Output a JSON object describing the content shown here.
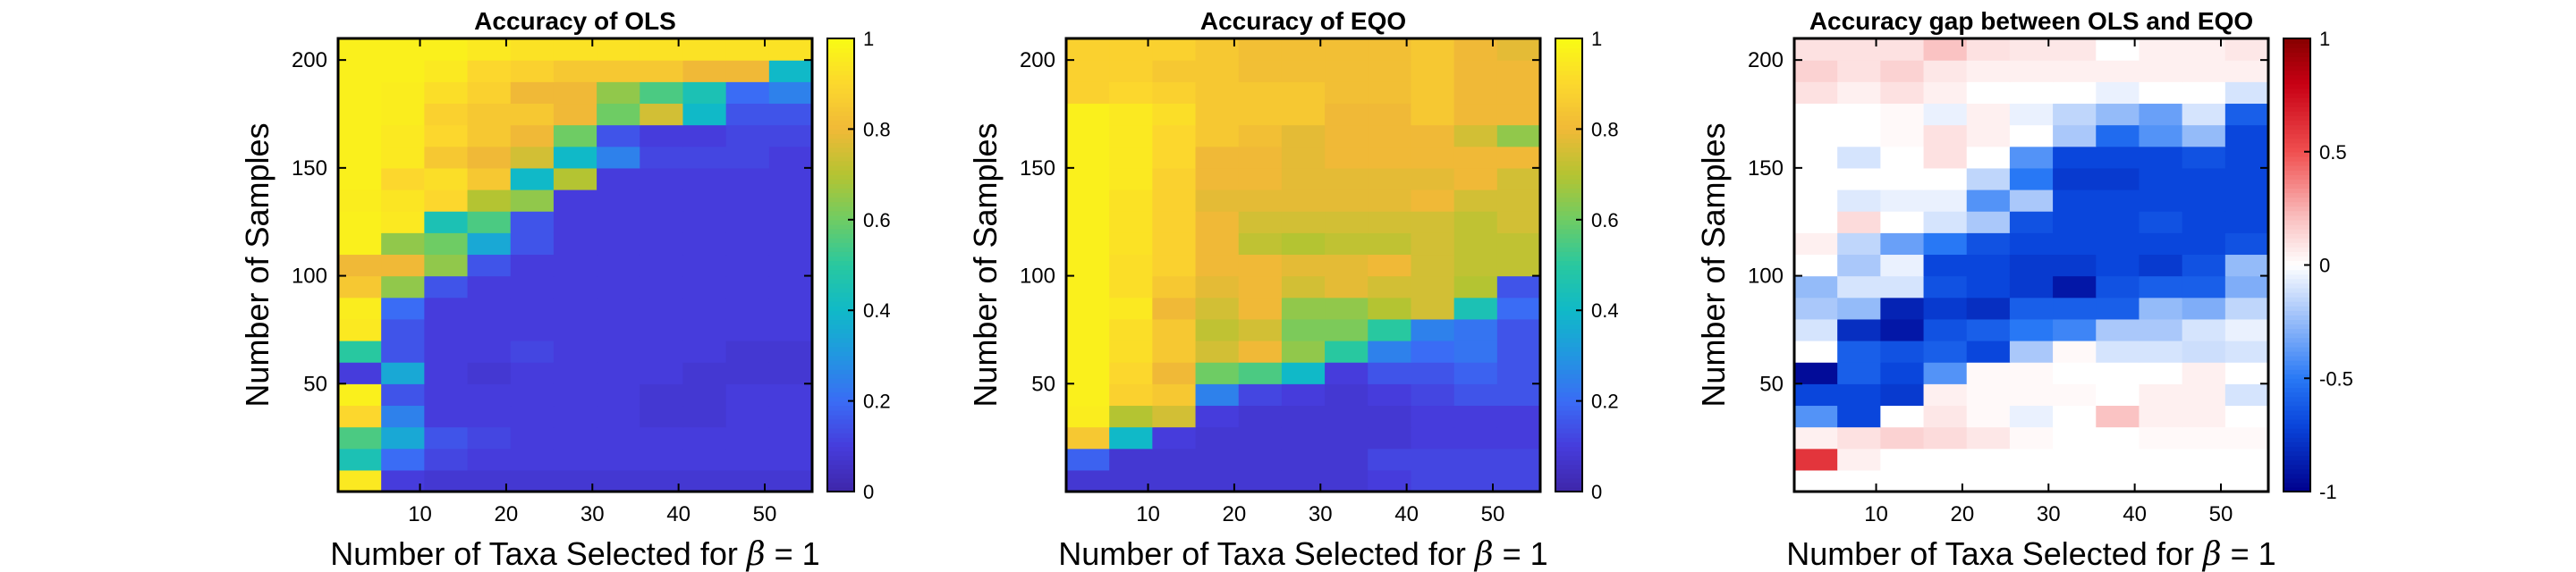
{
  "chart_data": [
    {
      "type": "heatmap",
      "title": "Accuracy of OLS",
      "xlabel": "Number of Taxa Selected for",
      "xlabel_symbol": "β",
      "xlabel_suffix": " = 1",
      "ylabel": "Number of Samples",
      "x": [
        3,
        8,
        13,
        18,
        23,
        28,
        33,
        38,
        43,
        48,
        53
      ],
      "y": [
        5,
        15,
        25,
        35,
        45,
        55,
        65,
        75,
        85,
        95,
        105,
        115,
        125,
        135,
        145,
        155,
        165,
        175,
        185,
        195,
        205
      ],
      "xticks": [
        "10",
        "20",
        "30",
        "40",
        "50"
      ],
      "yticks": [
        "50",
        "100",
        "150",
        "200"
      ],
      "colorbar": {
        "colormap": "parula",
        "range": [
          0,
          1
        ],
        "ticks": [
          "0",
          "0.2",
          "0.4",
          "0.6",
          "0.8",
          "1"
        ]
      },
      "z": [
        [
          0.95,
          0.1,
          0.08,
          0.08,
          0.08,
          0.08,
          0.08,
          0.08,
          0.08,
          0.08,
          0.08
        ],
        [
          0.45,
          0.2,
          0.12,
          0.1,
          0.1,
          0.1,
          0.1,
          0.1,
          0.1,
          0.1,
          0.1
        ],
        [
          0.55,
          0.35,
          0.15,
          0.12,
          0.1,
          0.1,
          0.1,
          0.1,
          0.1,
          0.1,
          0.1
        ],
        [
          0.9,
          0.25,
          0.1,
          0.1,
          0.1,
          0.1,
          0.1,
          0.08,
          0.08,
          0.1,
          0.1
        ],
        [
          0.97,
          0.15,
          0.1,
          0.1,
          0.1,
          0.1,
          0.1,
          0.08,
          0.08,
          0.1,
          0.1
        ],
        [
          0.1,
          0.35,
          0.1,
          0.08,
          0.1,
          0.1,
          0.1,
          0.1,
          0.08,
          0.08,
          0.08
        ],
        [
          0.5,
          0.15,
          0.1,
          0.1,
          0.12,
          0.1,
          0.1,
          0.1,
          0.1,
          0.08,
          0.08
        ],
        [
          0.95,
          0.15,
          0.1,
          0.1,
          0.1,
          0.1,
          0.1,
          0.1,
          0.1,
          0.1,
          0.1
        ],
        [
          0.96,
          0.2,
          0.1,
          0.1,
          0.1,
          0.1,
          0.1,
          0.1,
          0.1,
          0.1,
          0.1
        ],
        [
          0.85,
          0.65,
          0.15,
          0.1,
          0.1,
          0.1,
          0.1,
          0.1,
          0.1,
          0.1,
          0.1
        ],
        [
          0.8,
          0.8,
          0.65,
          0.15,
          0.1,
          0.1,
          0.1,
          0.1,
          0.1,
          0.1,
          0.1
        ],
        [
          0.97,
          0.65,
          0.6,
          0.35,
          0.15,
          0.1,
          0.1,
          0.1,
          0.1,
          0.1,
          0.1
        ],
        [
          0.97,
          0.95,
          0.45,
          0.55,
          0.15,
          0.1,
          0.1,
          0.1,
          0.1,
          0.1,
          0.1
        ],
        [
          0.96,
          0.94,
          0.9,
          0.7,
          0.65,
          0.1,
          0.1,
          0.1,
          0.1,
          0.1,
          0.1
        ],
        [
          0.97,
          0.9,
          0.92,
          0.85,
          0.4,
          0.7,
          0.1,
          0.1,
          0.1,
          0.1,
          0.1
        ],
        [
          0.97,
          0.95,
          0.85,
          0.8,
          0.75,
          0.4,
          0.25,
          0.12,
          0.12,
          0.12,
          0.1
        ],
        [
          0.97,
          0.95,
          0.9,
          0.85,
          0.8,
          0.6,
          0.15,
          0.1,
          0.1,
          0.12,
          0.12
        ],
        [
          0.97,
          0.96,
          0.88,
          0.85,
          0.85,
          0.8,
          0.6,
          0.75,
          0.4,
          0.15,
          0.15
        ],
        [
          0.97,
          0.96,
          0.92,
          0.88,
          0.8,
          0.8,
          0.65,
          0.55,
          0.45,
          0.2,
          0.25
        ],
        [
          0.97,
          0.97,
          0.95,
          0.9,
          0.88,
          0.85,
          0.85,
          0.85,
          0.8,
          0.8,
          0.4
        ],
        [
          0.97,
          0.97,
          0.97,
          0.95,
          0.93,
          0.93,
          0.93,
          0.93,
          0.93,
          0.93,
          0.93
        ]
      ]
    },
    {
      "type": "heatmap",
      "title": "Accuracy of EQO",
      "xlabel": "Number of Taxa Selected for",
      "xlabel_symbol": "β",
      "xlabel_suffix": " = 1",
      "ylabel": "Number of Samples",
      "x": [
        3,
        8,
        13,
        18,
        23,
        28,
        33,
        38,
        43,
        48,
        53
      ],
      "y": [
        5,
        15,
        25,
        35,
        45,
        55,
        65,
        75,
        85,
        95,
        105,
        115,
        125,
        135,
        145,
        155,
        165,
        175,
        185,
        195,
        205
      ],
      "xticks": [
        "10",
        "20",
        "30",
        "40",
        "50"
      ],
      "yticks": [
        "50",
        "100",
        "150",
        "200"
      ],
      "colorbar": {
        "colormap": "parula",
        "range": [
          0,
          1
        ],
        "ticks": [
          "0",
          "0.2",
          "0.4",
          "0.6",
          "0.8",
          "1"
        ]
      },
      "z": [
        [
          0.08,
          0.08,
          0.08,
          0.08,
          0.08,
          0.08,
          0.08,
          0.1,
          0.12,
          0.12,
          0.12
        ],
        [
          0.18,
          0.08,
          0.08,
          0.08,
          0.08,
          0.08,
          0.08,
          0.12,
          0.12,
          0.12,
          0.12
        ],
        [
          0.85,
          0.4,
          0.1,
          0.08,
          0.08,
          0.08,
          0.08,
          0.08,
          0.1,
          0.1,
          0.1
        ],
        [
          0.96,
          0.7,
          0.75,
          0.1,
          0.08,
          0.08,
          0.08,
          0.08,
          0.1,
          0.1,
          0.1
        ],
        [
          0.97,
          0.88,
          0.85,
          0.25,
          0.12,
          0.1,
          0.08,
          0.1,
          0.12,
          0.15,
          0.15
        ],
        [
          0.97,
          0.9,
          0.8,
          0.6,
          0.55,
          0.4,
          0.1,
          0.15,
          0.15,
          0.18,
          0.15
        ],
        [
          0.97,
          0.92,
          0.85,
          0.75,
          0.8,
          0.65,
          0.5,
          0.25,
          0.2,
          0.22,
          0.15
        ],
        [
          0.97,
          0.92,
          0.85,
          0.72,
          0.75,
          0.62,
          0.62,
          0.5,
          0.25,
          0.22,
          0.15
        ],
        [
          0.97,
          0.95,
          0.8,
          0.75,
          0.8,
          0.65,
          0.65,
          0.7,
          0.75,
          0.45,
          0.2
        ],
        [
          0.97,
          0.92,
          0.85,
          0.78,
          0.8,
          0.75,
          0.78,
          0.75,
          0.75,
          0.7,
          0.15
        ],
        [
          0.97,
          0.92,
          0.88,
          0.8,
          0.8,
          0.78,
          0.78,
          0.8,
          0.75,
          0.72,
          0.72
        ],
        [
          0.97,
          0.93,
          0.88,
          0.8,
          0.72,
          0.7,
          0.72,
          0.72,
          0.75,
          0.72,
          0.72
        ],
        [
          0.97,
          0.93,
          0.88,
          0.8,
          0.75,
          0.75,
          0.75,
          0.75,
          0.75,
          0.72,
          0.75
        ],
        [
          0.97,
          0.93,
          0.88,
          0.78,
          0.78,
          0.78,
          0.78,
          0.78,
          0.8,
          0.75,
          0.75
        ],
        [
          0.97,
          0.95,
          0.88,
          0.8,
          0.8,
          0.78,
          0.78,
          0.78,
          0.78,
          0.8,
          0.75
        ],
        [
          0.97,
          0.95,
          0.9,
          0.8,
          0.8,
          0.78,
          0.8,
          0.8,
          0.8,
          0.8,
          0.8
        ],
        [
          0.97,
          0.95,
          0.9,
          0.85,
          0.82,
          0.78,
          0.8,
          0.8,
          0.8,
          0.75,
          0.65
        ],
        [
          0.97,
          0.95,
          0.92,
          0.85,
          0.85,
          0.85,
          0.8,
          0.8,
          0.85,
          0.8,
          0.8
        ],
        [
          0.88,
          0.9,
          0.88,
          0.85,
          0.85,
          0.85,
          0.82,
          0.82,
          0.85,
          0.8,
          0.8
        ],
        [
          0.88,
          0.88,
          0.85,
          0.85,
          0.82,
          0.82,
          0.82,
          0.82,
          0.85,
          0.8,
          0.8
        ],
        [
          0.88,
          0.88,
          0.88,
          0.85,
          0.82,
          0.82,
          0.82,
          0.82,
          0.85,
          0.8,
          0.78
        ]
      ]
    },
    {
      "type": "heatmap",
      "title": "Accuracy gap between OLS and EQO",
      "xlabel": "Number of Taxa Selected for",
      "xlabel_symbol": "β",
      "xlabel_suffix": " = 1",
      "ylabel": "Number of Samples",
      "x": [
        3,
        8,
        13,
        18,
        23,
        28,
        33,
        38,
        43,
        48,
        53
      ],
      "y": [
        5,
        15,
        25,
        35,
        45,
        55,
        65,
        75,
        85,
        95,
        105,
        115,
        125,
        135,
        145,
        155,
        165,
        175,
        185,
        195,
        205
      ],
      "xticks": [
        "10",
        "20",
        "30",
        "40",
        "50"
      ],
      "yticks": [
        "50",
        "100",
        "150",
        "200"
      ],
      "colorbar": {
        "colormap": "red-white-blue",
        "range": [
          -1,
          1
        ],
        "ticks": [
          "-1",
          "-0.5",
          "0",
          "0.5",
          "1"
        ]
      },
      "z": [
        [
          0.0,
          0.0,
          0.0,
          0.0,
          0.0,
          0.0,
          0.0,
          0.0,
          0.0,
          0.0,
          0.0
        ],
        [
          0.6,
          0.05,
          0.0,
          0.0,
          0.0,
          0.0,
          0.0,
          0.0,
          0.0,
          0.0,
          0.0
        ],
        [
          0.05,
          0.1,
          0.15,
          0.12,
          0.08,
          0.02,
          0.0,
          0.0,
          0.02,
          0.02,
          0.02
        ],
        [
          -0.4,
          -0.7,
          0.0,
          0.08,
          0.02,
          -0.05,
          0.0,
          0.2,
          0.05,
          0.05,
          0.0
        ],
        [
          -0.7,
          -0.7,
          -0.75,
          0.05,
          0.02,
          0.02,
          0.02,
          0.0,
          0.05,
          0.05,
          -0.1
        ],
        [
          -0.95,
          -0.6,
          -0.7,
          -0.4,
          0.02,
          0.02,
          0.0,
          0.0,
          0.0,
          0.05,
          0.0
        ],
        [
          0.0,
          -0.6,
          -0.65,
          -0.6,
          -0.7,
          -0.2,
          0.02,
          -0.1,
          -0.1,
          -0.12,
          -0.1
        ],
        [
          -0.1,
          -0.8,
          -0.9,
          -0.65,
          -0.6,
          -0.5,
          -0.45,
          -0.2,
          -0.2,
          -0.1,
          -0.05
        ],
        [
          -0.2,
          -0.25,
          -0.85,
          -0.75,
          -0.8,
          -0.6,
          -0.6,
          -0.6,
          -0.25,
          -0.3,
          -0.15
        ],
        [
          -0.25,
          -0.1,
          -0.1,
          -0.65,
          -0.7,
          -0.75,
          -0.9,
          -0.65,
          -0.6,
          -0.6,
          -0.3
        ],
        [
          0.0,
          -0.2,
          -0.05,
          -0.7,
          -0.7,
          -0.75,
          -0.75,
          -0.7,
          -0.75,
          -0.65,
          -0.25
        ],
        [
          0.05,
          -0.15,
          -0.35,
          -0.5,
          -0.65,
          -0.7,
          -0.7,
          -0.7,
          -0.7,
          -0.7,
          -0.65
        ],
        [
          0.0,
          0.12,
          0.0,
          -0.1,
          -0.2,
          -0.65,
          -0.7,
          -0.7,
          -0.65,
          -0.7,
          -0.7
        ],
        [
          0.0,
          -0.08,
          -0.05,
          -0.05,
          -0.4,
          -0.2,
          -0.7,
          -0.7,
          -0.7,
          -0.7,
          -0.7
        ],
        [
          0.0,
          0.0,
          0.0,
          0.0,
          -0.15,
          -0.5,
          -0.75,
          -0.75,
          -0.7,
          -0.7,
          -0.7
        ],
        [
          0.0,
          -0.1,
          0.0,
          0.1,
          0.0,
          -0.4,
          -0.7,
          -0.7,
          -0.7,
          -0.65,
          -0.7
        ],
        [
          0.0,
          0.0,
          0.02,
          0.1,
          0.05,
          0.0,
          -0.2,
          -0.55,
          -0.4,
          -0.25,
          -0.7
        ],
        [
          0.0,
          0.0,
          0.02,
          -0.05,
          0.05,
          -0.05,
          -0.15,
          -0.25,
          -0.35,
          -0.1,
          -0.6
        ],
        [
          0.1,
          0.05,
          0.1,
          0.05,
          0.0,
          0.0,
          0.0,
          -0.05,
          0.0,
          0.0,
          -0.1
        ],
        [
          0.15,
          0.1,
          0.15,
          0.08,
          0.05,
          0.05,
          0.05,
          0.05,
          0.05,
          0.05,
          0.05
        ],
        [
          0.1,
          0.1,
          0.1,
          0.2,
          0.1,
          0.08,
          0.08,
          0.0,
          0.05,
          0.05,
          0.08
        ]
      ]
    }
  ]
}
